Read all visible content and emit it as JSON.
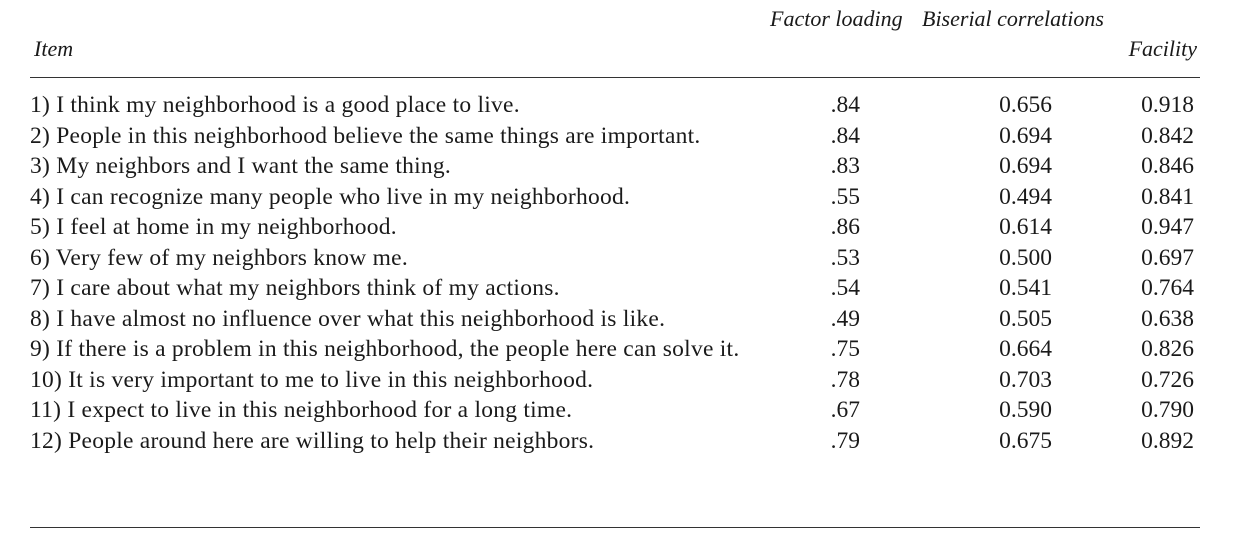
{
  "headers": {
    "item": "Item",
    "factor_loading": "Factor loading",
    "biserial": "Biserial correlations",
    "facility": "Facility"
  },
  "rows": [
    {
      "item": "1) I think my neighborhood is a good place to live.",
      "factor": ".84",
      "biserial": "0.656",
      "facility": "0.918"
    },
    {
      "item": "2) People in this neighborhood believe the same things are important.",
      "factor": ".84",
      "biserial": "0.694",
      "facility": "0.842"
    },
    {
      "item": "3) My neighbors and I want the same thing.",
      "factor": ".83",
      "biserial": "0.694",
      "facility": "0.846"
    },
    {
      "item": "4) I can recognize many people who live in my neighborhood.",
      "factor": ".55",
      "biserial": "0.494",
      "facility": "0.841"
    },
    {
      "item": "5) I feel at home in my neighborhood.",
      "factor": ".86",
      "biserial": "0.614",
      "facility": "0.947"
    },
    {
      "item": "6) Very few of my neighbors know me.",
      "factor": ".53",
      "biserial": "0.500",
      "facility": "0.697"
    },
    {
      "item": "7) I care about what my neighbors think of my actions.",
      "factor": ".54",
      "biserial": "0.541",
      "facility": "0.764"
    },
    {
      "item": "8) I have almost no influence over what this neighborhood is like.",
      "factor": ".49",
      "biserial": "0.505",
      "facility": "0.638"
    },
    {
      "item": "9) If there is a problem in this neighborhood, the people here can solve it.",
      "factor": ".75",
      "biserial": "0.664",
      "facility": "0.826"
    },
    {
      "item": "10) It is very important to me to live in this neighborhood.",
      "factor": ".78",
      "biserial": "0.703",
      "facility": "0.726"
    },
    {
      "item": "11) I expect to live in this neighborhood for a long time.",
      "factor": ".67",
      "biserial": "0.590",
      "facility": "0.790"
    },
    {
      "item": "12) People around here are willing to help their neighbors.",
      "factor": ".79",
      "biserial": "0.675",
      "facility": "0.892"
    }
  ]
}
